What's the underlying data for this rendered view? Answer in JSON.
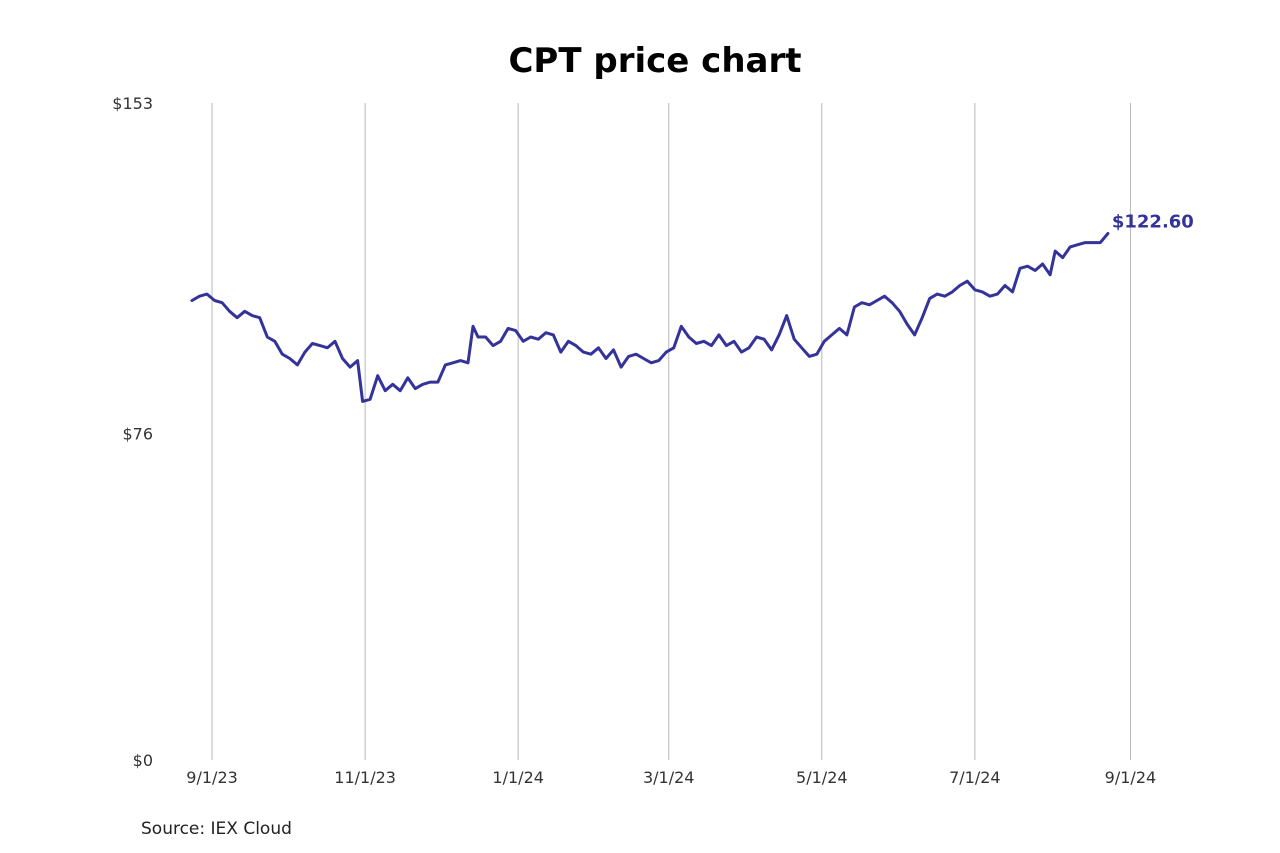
{
  "chart_data": {
    "type": "line",
    "title": "CPT price chart",
    "source": "Source: IEX Cloud",
    "xlabel": "",
    "ylabel": "",
    "grid": {
      "vertical": true,
      "horizontal": false
    },
    "ylim": [
      0,
      153
    ],
    "y_ticks": [
      {
        "value": 0,
        "label": "$0"
      },
      {
        "value": 76,
        "label": "$76"
      },
      {
        "value": 153,
        "label": "$153"
      }
    ],
    "xlim": [
      "2023-08-26",
      "2024-09-08"
    ],
    "x_ticks": [
      {
        "date": "2023-09-01",
        "label": "9/1/23"
      },
      {
        "date": "2023-11-01",
        "label": "11/1/23"
      },
      {
        "date": "2024-01-01",
        "label": "1/1/24"
      },
      {
        "date": "2024-03-01",
        "label": "3/1/24"
      },
      {
        "date": "2024-05-01",
        "label": "5/1/24"
      },
      {
        "date": "2024-07-01",
        "label": "7/1/24"
      },
      {
        "date": "2024-09-01",
        "label": "9/1/24"
      }
    ],
    "series": [
      {
        "color": "#333399",
        "last_value_label": "$122.60",
        "points": [
          [
            "2023-08-24",
            107.0
          ],
          [
            "2023-08-27",
            108.0
          ],
          [
            "2023-08-30",
            108.5
          ],
          [
            "2023-09-02",
            107.0
          ],
          [
            "2023-09-05",
            106.5
          ],
          [
            "2023-09-08",
            104.5
          ],
          [
            "2023-09-11",
            103.0
          ],
          [
            "2023-09-14",
            104.5
          ],
          [
            "2023-09-17",
            103.5
          ],
          [
            "2023-09-20",
            103.0
          ],
          [
            "2023-09-23",
            98.5
          ],
          [
            "2023-09-26",
            97.5
          ],
          [
            "2023-09-29",
            94.5
          ],
          [
            "2023-10-02",
            93.5
          ],
          [
            "2023-10-05",
            92.0
          ],
          [
            "2023-10-08",
            95.0
          ],
          [
            "2023-10-11",
            97.0
          ],
          [
            "2023-10-14",
            96.5
          ],
          [
            "2023-10-17",
            96.0
          ],
          [
            "2023-10-20",
            97.5
          ],
          [
            "2023-10-23",
            93.5
          ],
          [
            "2023-10-26",
            91.5
          ],
          [
            "2023-10-29",
            93.0
          ],
          [
            "2023-10-31",
            83.5
          ],
          [
            "2023-11-03",
            84.0
          ],
          [
            "2023-11-06",
            89.5
          ],
          [
            "2023-11-09",
            86.0
          ],
          [
            "2023-11-12",
            87.5
          ],
          [
            "2023-11-15",
            86.0
          ],
          [
            "2023-11-18",
            89.0
          ],
          [
            "2023-11-21",
            86.5
          ],
          [
            "2023-11-24",
            87.5
          ],
          [
            "2023-11-27",
            88.0
          ],
          [
            "2023-11-30",
            88.0
          ],
          [
            "2023-12-03",
            92.0
          ],
          [
            "2023-12-06",
            92.5
          ],
          [
            "2023-12-09",
            93.0
          ],
          [
            "2023-12-12",
            92.5
          ],
          [
            "2023-12-14",
            101.0
          ],
          [
            "2023-12-16",
            98.5
          ],
          [
            "2023-12-19",
            98.5
          ],
          [
            "2023-12-22",
            96.5
          ],
          [
            "2023-12-25",
            97.5
          ],
          [
            "2023-12-28",
            100.5
          ],
          [
            "2023-12-31",
            100.0
          ],
          [
            "2024-01-03",
            97.5
          ],
          [
            "2024-01-06",
            98.5
          ],
          [
            "2024-01-09",
            98.0
          ],
          [
            "2024-01-12",
            99.5
          ],
          [
            "2024-01-15",
            99.0
          ],
          [
            "2024-01-18",
            95.0
          ],
          [
            "2024-01-21",
            97.5
          ],
          [
            "2024-01-24",
            96.5
          ],
          [
            "2024-01-27",
            95.0
          ],
          [
            "2024-01-30",
            94.5
          ],
          [
            "2024-02-02",
            96.0
          ],
          [
            "2024-02-05",
            93.5
          ],
          [
            "2024-02-08",
            95.5
          ],
          [
            "2024-02-11",
            91.5
          ],
          [
            "2024-02-14",
            94.0
          ],
          [
            "2024-02-17",
            94.5
          ],
          [
            "2024-02-20",
            93.5
          ],
          [
            "2024-02-23",
            92.5
          ],
          [
            "2024-02-26",
            93.0
          ],
          [
            "2024-02-29",
            95.0
          ],
          [
            "2024-03-03",
            96.0
          ],
          [
            "2024-03-06",
            101.0
          ],
          [
            "2024-03-09",
            98.5
          ],
          [
            "2024-03-12",
            97.0
          ],
          [
            "2024-03-15",
            97.5
          ],
          [
            "2024-03-18",
            96.5
          ],
          [
            "2024-03-21",
            99.0
          ],
          [
            "2024-03-24",
            96.5
          ],
          [
            "2024-03-27",
            97.5
          ],
          [
            "2024-03-30",
            95.0
          ],
          [
            "2024-04-02",
            96.0
          ],
          [
            "2024-04-05",
            98.5
          ],
          [
            "2024-04-08",
            98.0
          ],
          [
            "2024-04-11",
            95.5
          ],
          [
            "2024-04-14",
            99.0
          ],
          [
            "2024-04-17",
            103.5
          ],
          [
            "2024-04-20",
            98.0
          ],
          [
            "2024-04-23",
            96.0
          ],
          [
            "2024-04-26",
            94.0
          ],
          [
            "2024-04-29",
            94.5
          ],
          [
            "2024-05-02",
            97.5
          ],
          [
            "2024-05-05",
            99.0
          ],
          [
            "2024-05-08",
            100.5
          ],
          [
            "2024-05-11",
            99.0
          ],
          [
            "2024-05-14",
            105.5
          ],
          [
            "2024-05-17",
            106.5
          ],
          [
            "2024-05-20",
            106.0
          ],
          [
            "2024-05-23",
            107.0
          ],
          [
            "2024-05-26",
            108.0
          ],
          [
            "2024-05-29",
            106.5
          ],
          [
            "2024-06-01",
            104.5
          ],
          [
            "2024-06-04",
            101.5
          ],
          [
            "2024-06-07",
            99.0
          ],
          [
            "2024-06-10",
            103.0
          ],
          [
            "2024-06-13",
            107.5
          ],
          [
            "2024-06-16",
            108.5
          ],
          [
            "2024-06-19",
            108.0
          ],
          [
            "2024-06-22",
            109.0
          ],
          [
            "2024-06-25",
            110.5
          ],
          [
            "2024-06-28",
            111.5
          ],
          [
            "2024-07-01",
            109.5
          ],
          [
            "2024-07-04",
            109.0
          ],
          [
            "2024-07-07",
            108.0
          ],
          [
            "2024-07-10",
            108.5
          ],
          [
            "2024-07-13",
            110.5
          ],
          [
            "2024-07-16",
            109.0
          ],
          [
            "2024-07-19",
            114.5
          ],
          [
            "2024-07-22",
            115.0
          ],
          [
            "2024-07-25",
            114.0
          ],
          [
            "2024-07-28",
            115.5
          ],
          [
            "2024-07-31",
            113.0
          ],
          [
            "2024-08-02",
            118.5
          ],
          [
            "2024-08-05",
            117.0
          ],
          [
            "2024-08-08",
            119.5
          ],
          [
            "2024-08-11",
            120.0
          ],
          [
            "2024-08-14",
            120.5
          ],
          [
            "2024-08-17",
            120.5
          ],
          [
            "2024-08-20",
            120.5
          ],
          [
            "2024-08-23",
            122.6
          ]
        ]
      }
    ]
  }
}
